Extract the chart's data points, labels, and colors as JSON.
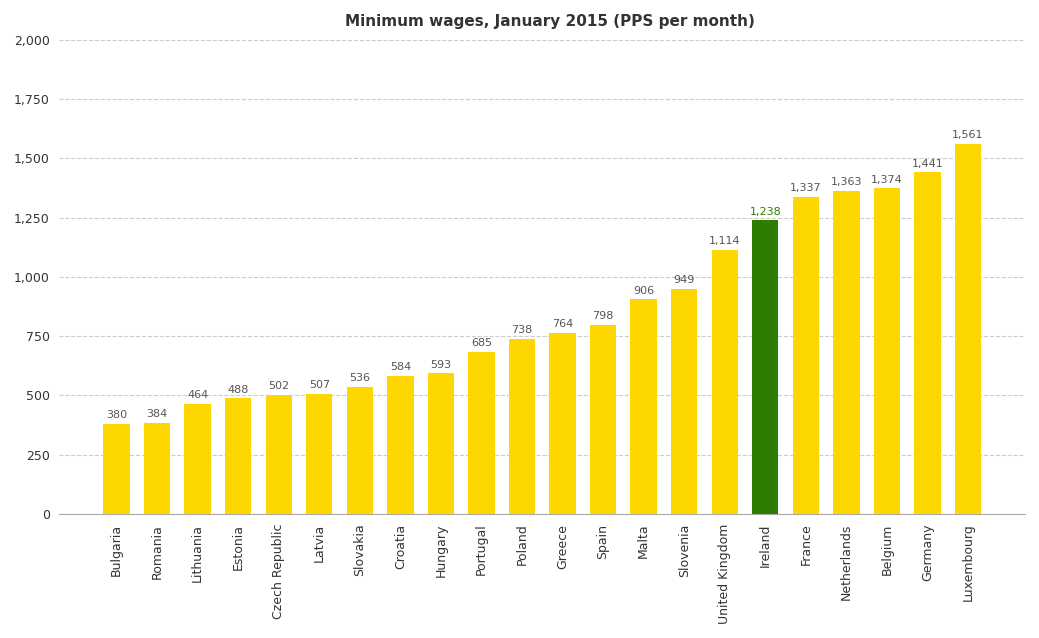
{
  "title": "Minimum wages, January 2015 (PPS per month)",
  "categories": [
    "Bulgaria",
    "Romania",
    "Lithuania",
    "Estonia",
    "Czech Republic",
    "Latvia",
    "Slovakia",
    "Croatia",
    "Hungary",
    "Portugal",
    "Poland",
    "Greece",
    "Spain",
    "Malta",
    "Slovenia",
    "United Kingdom",
    "Ireland",
    "France",
    "Netherlands",
    "Belgium",
    "Germany",
    "Luxembourg"
  ],
  "values": [
    380,
    384,
    464,
    488,
    502,
    507,
    536,
    584,
    593,
    685,
    738,
    764,
    798,
    906,
    949,
    1114,
    1238,
    1337,
    1363,
    1374,
    1441,
    1561
  ],
  "bar_colors": [
    "#FFD700",
    "#FFD700",
    "#FFD700",
    "#FFD700",
    "#FFD700",
    "#FFD700",
    "#FFD700",
    "#FFD700",
    "#FFD700",
    "#FFD700",
    "#FFD700",
    "#FFD700",
    "#FFD700",
    "#FFD700",
    "#FFD700",
    "#FFD700",
    "#2E7D00",
    "#FFD700",
    "#FFD700",
    "#FFD700",
    "#FFD700",
    "#FFD700"
  ],
  "label_colors": [
    "#555555",
    "#555555",
    "#555555",
    "#555555",
    "#555555",
    "#555555",
    "#555555",
    "#555555",
    "#555555",
    "#555555",
    "#555555",
    "#555555",
    "#555555",
    "#555555",
    "#555555",
    "#555555",
    "#2E7D00",
    "#555555",
    "#555555",
    "#555555",
    "#555555",
    "#555555"
  ],
  "ylim": [
    0,
    2000
  ],
  "yticks": [
    0,
    250,
    500,
    750,
    1000,
    1250,
    1500,
    1750,
    2000
  ],
  "ytick_labels": [
    "0",
    "250",
    "500",
    "750",
    "1,000",
    "1,250",
    "1,500",
    "1,750",
    "2,000"
  ],
  "background_color": "#FFFFFF",
  "grid_color": "#CCCCCC",
  "title_fontsize": 11,
  "label_fontsize": 8,
  "tick_fontsize": 9,
  "bar_width": 0.65
}
